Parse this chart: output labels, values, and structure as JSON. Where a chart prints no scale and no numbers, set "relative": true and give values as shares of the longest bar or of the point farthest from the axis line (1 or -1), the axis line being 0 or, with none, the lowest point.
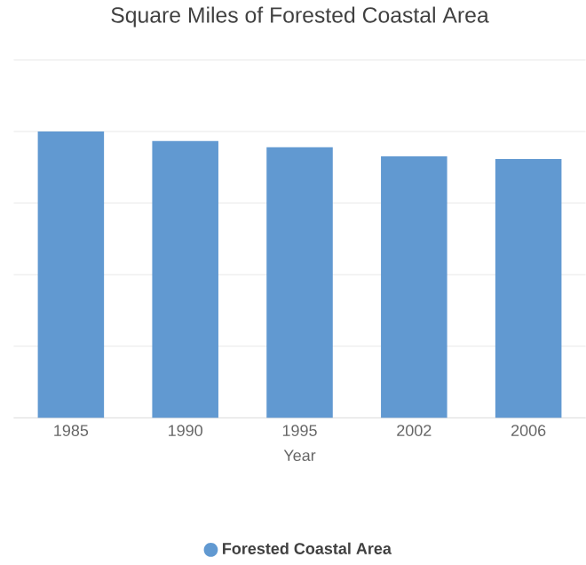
{
  "chart_data": {
    "type": "bar",
    "title": "Square Miles of Forested Coastal Area",
    "xlabel": "Year",
    "categories": [
      "1985",
      "1990",
      "1995",
      "2002",
      "2006"
    ],
    "series": [
      {
        "name": "Forested Coastal Area",
        "color": "#6199d1",
        "values": [
          1,
          0.967,
          0.945,
          0.913,
          0.904
        ]
      }
    ],
    "relative": true,
    "grid": "y",
    "legend": "bottom"
  }
}
